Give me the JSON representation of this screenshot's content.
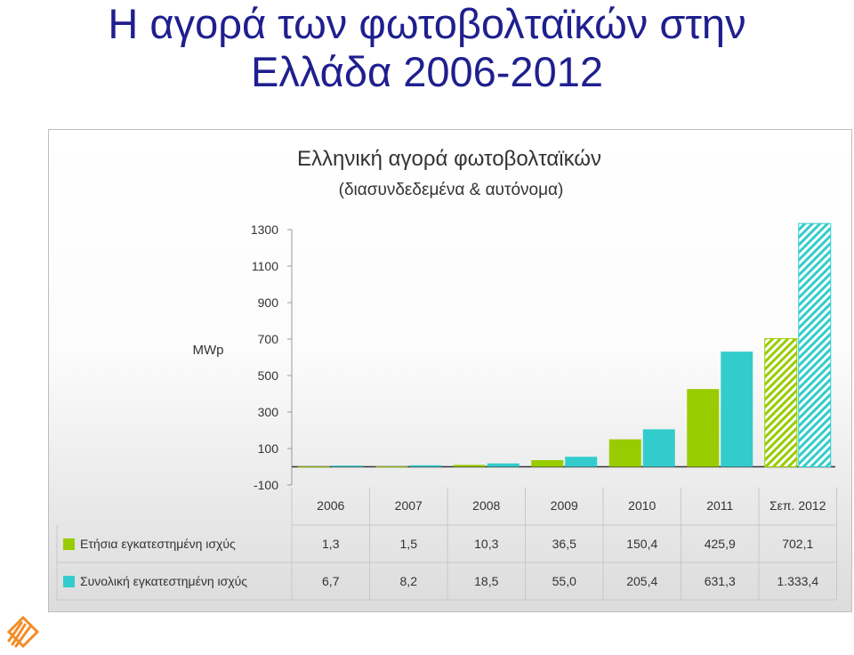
{
  "slide": {
    "title_line1": "Η αγορά των φωτοβολταϊκών στην",
    "title_line2": "Ελλάδα 2006-2012"
  },
  "chart_data": {
    "type": "bar",
    "title": "Ελληνική αγορά φωτοβολταϊκών",
    "subtitle": "(διασυνδεδεμένα & αυτόνομα)",
    "ylabel": "MWp",
    "ylim": [
      -100,
      1300
    ],
    "yticks": [
      1300,
      1100,
      900,
      700,
      500,
      300,
      100,
      -100
    ],
    "categories": [
      "2006",
      "2007",
      "2008",
      "2009",
      "2010",
      "2011",
      "Σεπ. 2012"
    ],
    "series": [
      {
        "name": "Ετήσια εγκατεστημένη ισχύς",
        "color": "#99cc00",
        "values": [
          1.3,
          1.5,
          10.3,
          36.5,
          150.4,
          425.9,
          702.1
        ],
        "labels": [
          "1,3",
          "1,5",
          "10,3",
          "36,5",
          "150,4",
          "425,9",
          "702,1"
        ]
      },
      {
        "name": "Συνολική εγκατεστημένη ισχύς",
        "color": "#33cccc",
        "values": [
          6.7,
          8.2,
          18.5,
          55.0,
          205.4,
          631.3,
          1333.4
        ],
        "labels": [
          "6,7",
          "8,2",
          "18,5",
          "55,0",
          "205,4",
          "631,3",
          "1.333,4"
        ]
      }
    ],
    "last_category_pattern": "hatched",
    "grid": false,
    "legend": "table-below"
  }
}
